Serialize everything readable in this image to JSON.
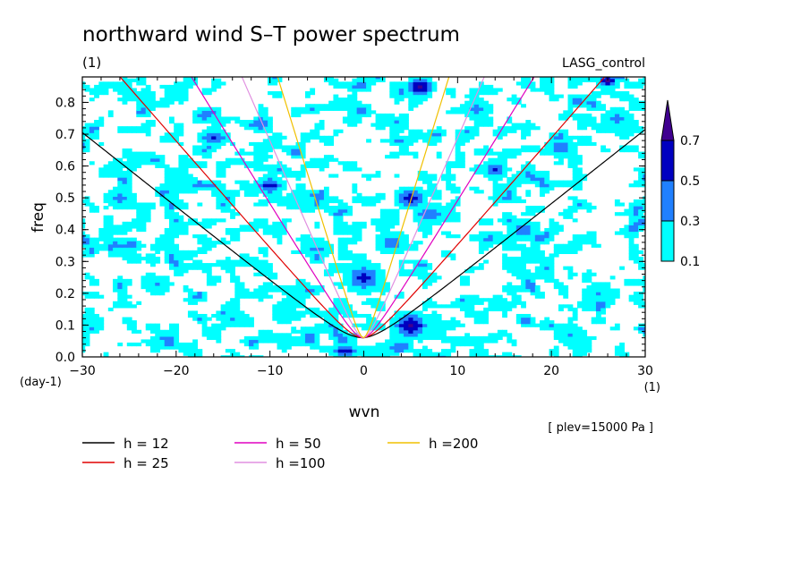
{
  "chart_data": {
    "type": "heatmap",
    "title": "northward wind S–T power spectrum",
    "subtitle_left": "(1)",
    "subtitle_right": "LASG_control",
    "xlabel": "wvn",
    "ylabel": "freq",
    "x_unit": "(1)",
    "y_unit": "(day-1)",
    "xlim": [
      -30,
      30
    ],
    "ylim": [
      0,
      0.88
    ],
    "x_ticks": [
      -30,
      -20,
      -10,
      0,
      10,
      20,
      30
    ],
    "x_tick_labels": [
      "−30",
      "−20",
      "−10",
      "0",
      "10",
      "20",
      "30"
    ],
    "y_ticks": [
      0,
      0.1,
      0.2,
      0.3,
      0.4,
      0.5,
      0.6,
      0.7,
      0.8
    ],
    "y_tick_labels": [
      "0.0",
      "0.1",
      "0.2",
      "0.3",
      "0.4",
      "0.5",
      "0.6",
      "0.7",
      "0.8"
    ],
    "annotation": "[ plev=15000 Pa ]",
    "colorbar": {
      "levels": [
        "0.1",
        "0.3",
        "0.5",
        "0.7"
      ],
      "colors": [
        "#00ffff",
        "#2080ff",
        "#0000c0",
        "#400090"
      ]
    },
    "contour_levels": [
      0.1,
      0.3,
      0.5,
      0.7
    ],
    "dispersion_curves": [
      {
        "name": "h = 12",
        "h": 12,
        "color": "#000000"
      },
      {
        "name": "h = 25",
        "h": 25,
        "color": "#e00000"
      },
      {
        "name": "h = 50",
        "h": 50,
        "color": "#e000c0"
      },
      {
        "name": "h =100",
        "h": 100,
        "color": "#e090e0"
      },
      {
        "name": "h =200",
        "h": 200,
        "color": "#f0c000"
      }
    ],
    "blobs": [
      {
        "x": 5,
        "y": 0.1,
        "r": 1.6,
        "ry": 0.035,
        "v": 0.75
      },
      {
        "x": 6,
        "y": 0.85,
        "r": 1.2,
        "ry": 0.03,
        "v": 0.72
      },
      {
        "x": 26,
        "y": 0.87,
        "r": 1.0,
        "ry": 0.02,
        "v": 0.74
      },
      {
        "x": -2,
        "y": 0.02,
        "r": 1.3,
        "ry": 0.02,
        "v": 0.6
      },
      {
        "x": 5,
        "y": 0.5,
        "r": 1.5,
        "ry": 0.03,
        "v": 0.58
      },
      {
        "x": 0,
        "y": 0.25,
        "r": 1.8,
        "ry": 0.04,
        "v": 0.55
      },
      {
        "x": -10,
        "y": 0.54,
        "r": 1.4,
        "ry": 0.025,
        "v": 0.58
      },
      {
        "x": 14,
        "y": 0.59,
        "r": 1.2,
        "ry": 0.025,
        "v": 0.52
      },
      {
        "x": -16,
        "y": 0.69,
        "r": 1.4,
        "ry": 0.025,
        "v": 0.5
      },
      {
        "x": 7,
        "y": 0.45,
        "r": 1.6,
        "ry": 0.03,
        "v": 0.46
      },
      {
        "x": 3,
        "y": 0.36,
        "r": 1.6,
        "ry": 0.03,
        "v": 0.42
      },
      {
        "x": 21,
        "y": 0.66,
        "r": 1.5,
        "ry": 0.03,
        "v": 0.4
      },
      {
        "x": 17,
        "y": 0.4,
        "r": 1.6,
        "ry": 0.03,
        "v": 0.38
      },
      {
        "x": -26,
        "y": 0.5,
        "r": 1.6,
        "ry": 0.03,
        "v": 0.36
      },
      {
        "x": 27,
        "y": 0.75,
        "r": 1.5,
        "ry": 0.03,
        "v": 0.36
      },
      {
        "x": -22,
        "y": 0.23,
        "r": 1.4,
        "ry": 0.025,
        "v": 0.34
      },
      {
        "x": 12,
        "y": 0.78,
        "r": 1.5,
        "ry": 0.03,
        "v": 0.34
      },
      {
        "x": -5,
        "y": 0.34,
        "r": 1.7,
        "ry": 0.03,
        "v": 0.33
      },
      {
        "x": 25,
        "y": 0.2,
        "r": 1.5,
        "ry": 0.03,
        "v": 0.32
      },
      {
        "x": -14,
        "y": 0.12,
        "r": 1.4,
        "ry": 0.025,
        "v": 0.32
      },
      {
        "x": 22,
        "y": 0.07,
        "r": 1.5,
        "ry": 0.03,
        "v": 0.32
      }
    ]
  }
}
